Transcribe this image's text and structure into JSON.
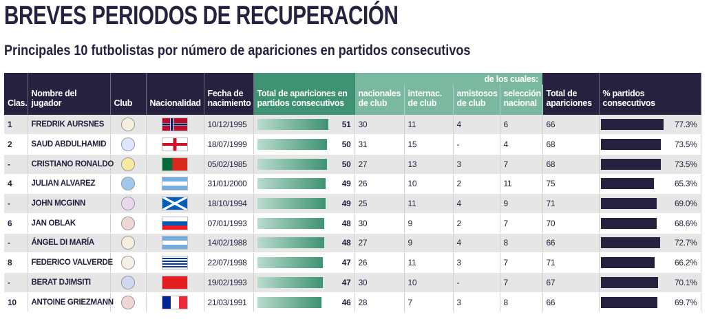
{
  "title": "BREVES PERIODOS DE RECUPERACIÓN",
  "subtitle": "Principales 10 futbolistas por número de apariciones en partidos consecutivos",
  "colors": {
    "dark": "#25213f",
    "green": "#3f9272",
    "light_green": "#7ab8a0"
  },
  "headers": {
    "rank": "Clas.",
    "name": "Nombre del jugador",
    "club": "Club",
    "nationality": "Nacionalidad",
    "birth": "Fecha de nacimiento",
    "consecutive": "Total de apariciones en partidos consecutivos",
    "of_which": "de los cuales:",
    "domestic": "nacionales de club",
    "international": "internac. de club",
    "friendly": "amistosos de club",
    "national": "selección nacional",
    "total": "Total de apariciones",
    "pct": "% partidos consecutivos"
  },
  "rows": [
    {
      "rank": "1",
      "name": "FREDRIK AURSNES",
      "club": "benfica-crest",
      "flag": "norway",
      "birth": "10/12/1995",
      "consecutive": 51,
      "domestic": "30",
      "international": "11",
      "friendly": "4",
      "national": "6",
      "total": "66",
      "pct": 77.3,
      "pct_label": "77.3%"
    },
    {
      "rank": "2",
      "name": "SAUD ABDULHAMID",
      "club": "al-hilal-crest",
      "flag": "england",
      "birth": "18/07/1999",
      "consecutive": 50,
      "domestic": "31",
      "international": "15",
      "friendly": "-",
      "national": "4",
      "total": "68",
      "pct": 73.5,
      "pct_label": "73.5%"
    },
    {
      "rank": "-",
      "name": "CRISTIANO RONALDO",
      "club": "al-nassr-crest",
      "flag": "portugal",
      "birth": "05/02/1985",
      "consecutive": 50,
      "domestic": "27",
      "international": "13",
      "friendly": "3",
      "national": "7",
      "total": "68",
      "pct": 73.5,
      "pct_label": "73.5%"
    },
    {
      "rank": "4",
      "name": "JULIAN ALVAREZ",
      "club": "man-city-crest",
      "flag": "argentina",
      "birth": "31/01/2000",
      "consecutive": 49,
      "domestic": "26",
      "international": "10",
      "friendly": "2",
      "national": "11",
      "total": "75",
      "pct": 65.3,
      "pct_label": "65.3%"
    },
    {
      "rank": "-",
      "name": "JOHN MCGINN",
      "club": "aston-villa-crest",
      "flag": "scotland",
      "birth": "18/10/1994",
      "consecutive": 49,
      "domestic": "25",
      "international": "11",
      "friendly": "4",
      "national": "9",
      "total": "71",
      "pct": 69.0,
      "pct_label": "69.0%"
    },
    {
      "rank": "6",
      "name": "JAN OBLAK",
      "club": "atletico-crest",
      "flag": "slovenia",
      "birth": "07/01/1993",
      "consecutive": 48,
      "domestic": "30",
      "international": "9",
      "friendly": "2",
      "national": "7",
      "total": "70",
      "pct": 68.6,
      "pct_label": "68.6%"
    },
    {
      "rank": "-",
      "name": "ÁNGEL DI MARÍA",
      "club": "benfica-crest",
      "flag": "argentina",
      "birth": "14/02/1988",
      "consecutive": 48,
      "domestic": "27",
      "international": "9",
      "friendly": "4",
      "national": "8",
      "total": "66",
      "pct": 72.7,
      "pct_label": "72.7%"
    },
    {
      "rank": "8",
      "name": "FEDERICO VALVERDE",
      "club": "real-madrid-crest",
      "flag": "uruguay",
      "birth": "22/07/1998",
      "consecutive": 47,
      "domestic": "26",
      "international": "11",
      "friendly": "3",
      "national": "7",
      "total": "71",
      "pct": 66.2,
      "pct_label": "66.2%"
    },
    {
      "rank": "-",
      "name": "BERAT DJIMSITI",
      "club": "atalanta-crest",
      "flag": "albania",
      "birth": "19/02/1993",
      "consecutive": 47,
      "domestic": "30",
      "international": "10",
      "friendly": "-",
      "national": "7",
      "total": "67",
      "pct": 70.1,
      "pct_label": "70.1%"
    },
    {
      "rank": "10",
      "name": "ANTOINE GRIEZMANN",
      "club": "atletico-crest",
      "flag": "france",
      "birth": "21/03/1991",
      "consecutive": 46,
      "domestic": "28",
      "international": "7",
      "friendly": "3",
      "national": "8",
      "total": "66",
      "pct": 69.7,
      "pct_label": "69.7%"
    }
  ]
}
